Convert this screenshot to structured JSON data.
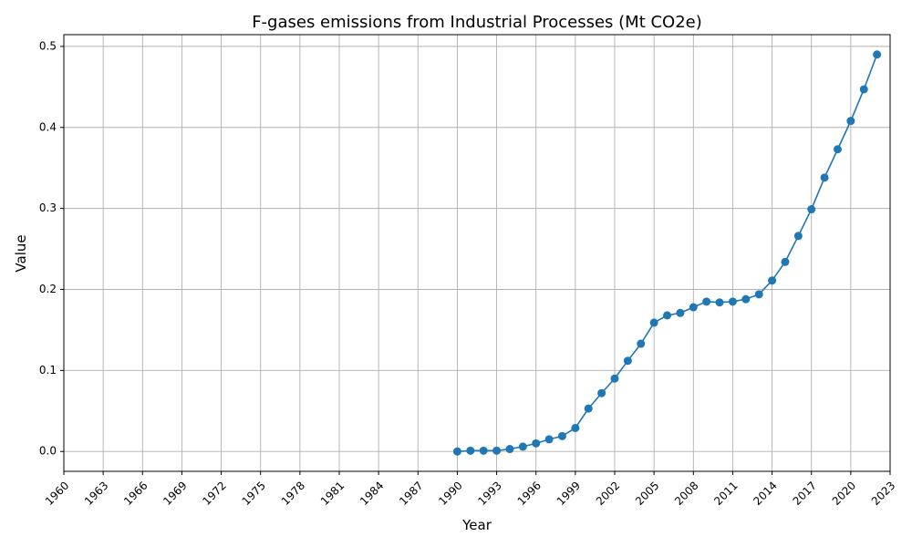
{
  "chart_data": {
    "type": "line",
    "title": "F-gases emissions from Industrial Processes (Mt CO2e)",
    "xlabel": "Year",
    "ylabel": "Value",
    "xlim": [
      1960,
      2023
    ],
    "ylim": [
      -0.0245,
      0.5145
    ],
    "grid": true,
    "x_ticks": [
      1960,
      1963,
      1966,
      1969,
      1972,
      1975,
      1978,
      1981,
      1984,
      1987,
      1990,
      1993,
      1996,
      1999,
      2002,
      2005,
      2008,
      2011,
      2014,
      2017,
      2020,
      2023
    ],
    "y_ticks": [
      0.0,
      0.1,
      0.2,
      0.3,
      0.4,
      0.5
    ],
    "y_tick_labels": [
      "0.0",
      "0.1",
      "0.2",
      "0.3",
      "0.4",
      "0.5"
    ],
    "series": [
      {
        "name": "F-gases",
        "color": "#1f77b4",
        "x": [
          1990,
          1991,
          1992,
          1993,
          1994,
          1995,
          1996,
          1997,
          1998,
          1999,
          2000,
          2001,
          2002,
          2003,
          2004,
          2005,
          2006,
          2007,
          2008,
          2009,
          2010,
          2011,
          2012,
          2013,
          2014,
          2015,
          2016,
          2017,
          2018,
          2019,
          2020,
          2021,
          2022
        ],
        "values": [
          0.0,
          0.001,
          0.001,
          0.001,
          0.003,
          0.006,
          0.01,
          0.015,
          0.019,
          0.029,
          0.053,
          0.072,
          0.09,
          0.112,
          0.133,
          0.159,
          0.168,
          0.171,
          0.178,
          0.185,
          0.184,
          0.185,
          0.188,
          0.194,
          0.211,
          0.234,
          0.266,
          0.299,
          0.338,
          0.373,
          0.408,
          0.447,
          0.49
        ]
      }
    ]
  }
}
